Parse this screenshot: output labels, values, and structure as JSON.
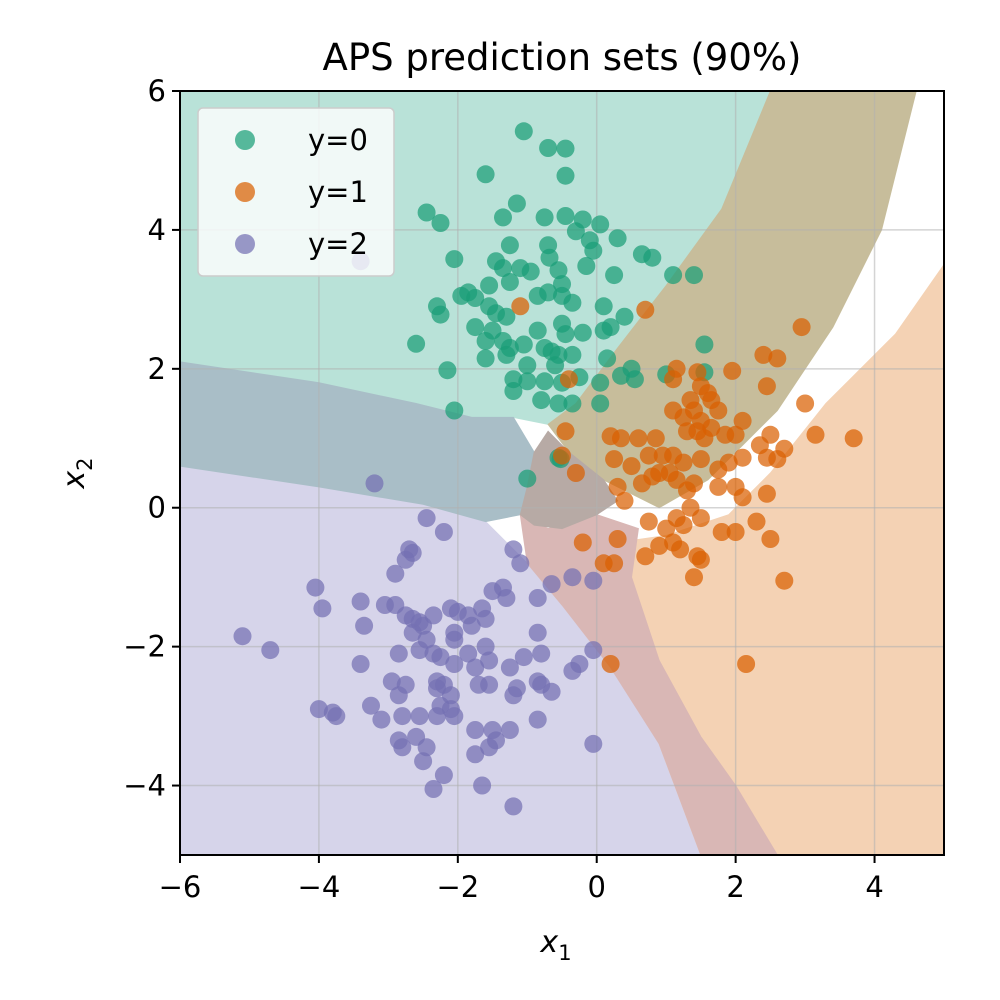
{
  "chart_data": {
    "type": "scatter",
    "title": "APS prediction sets (90%)",
    "xlabel": "x",
    "xlabel_sub": "1",
    "ylabel": "x",
    "ylabel_sub": "2",
    "xlim": [
      -6,
      5
    ],
    "ylim": [
      -5,
      6
    ],
    "xticks": [
      -6,
      -4,
      -2,
      0,
      2,
      4
    ],
    "yticks": [
      -4,
      -2,
      0,
      2,
      4,
      6
    ],
    "xtick_labels": [
      "−6",
      "−4",
      "−2",
      "0",
      "2",
      "4"
    ],
    "ytick_labels": [
      "−4",
      "−2",
      "0",
      "2",
      "4",
      "6"
    ],
    "grid": true,
    "legend_position": "top-left",
    "region_colors": {
      "class0": "#b9e2d8",
      "class1": "#f4d2b4",
      "class2": "#d6d4ea",
      "set01": "#c7bd9b",
      "set02": "#a9bec7",
      "set12": "#d9b7b5",
      "set012": "#b7aaa5"
    },
    "series": [
      {
        "name": "y=0",
        "color": "#1b9e77",
        "points": [
          [
            -1.05,
            5.42
          ],
          [
            -0.7,
            5.18
          ],
          [
            -0.45,
            5.17
          ],
          [
            -0.45,
            4.78
          ],
          [
            -1.6,
            4.8
          ],
          [
            -2.45,
            4.25
          ],
          [
            -2.25,
            4.1
          ],
          [
            -1.15,
            4.38
          ],
          [
            -1.35,
            4.18
          ],
          [
            -0.75,
            4.18
          ],
          [
            -0.45,
            4.2
          ],
          [
            -0.2,
            4.15
          ],
          [
            0.05,
            4.08
          ],
          [
            0.3,
            3.88
          ],
          [
            -0.1,
            3.85
          ],
          [
            -0.3,
            3.98
          ],
          [
            -1.25,
            3.78
          ],
          [
            -0.7,
            3.78
          ],
          [
            -0.68,
            3.6
          ],
          [
            -0.95,
            3.4
          ],
          [
            -1.1,
            3.45
          ],
          [
            -1.45,
            3.55
          ],
          [
            -1.35,
            3.45
          ],
          [
            -1.55,
            3.2
          ],
          [
            -1.25,
            3.25
          ],
          [
            -0.5,
            3.22
          ],
          [
            -0.55,
            3.42
          ],
          [
            -0.15,
            3.48
          ],
          [
            -0.05,
            3.7
          ],
          [
            0.25,
            3.35
          ],
          [
            0.65,
            3.65
          ],
          [
            0.8,
            3.6
          ],
          [
            1.1,
            3.35
          ],
          [
            1.4,
            3.35
          ],
          [
            -2.05,
            3.58
          ],
          [
            -1.85,
            3.1
          ],
          [
            -1.75,
            3.02
          ],
          [
            -1.95,
            3.05
          ],
          [
            -2.3,
            2.9
          ],
          [
            -2.25,
            2.78
          ],
          [
            -1.55,
            2.9
          ],
          [
            -1.45,
            2.8
          ],
          [
            -1.3,
            2.75
          ],
          [
            -0.85,
            3.05
          ],
          [
            -0.7,
            3.1
          ],
          [
            -0.5,
            3.05
          ],
          [
            -0.35,
            2.95
          ],
          [
            0.1,
            2.9
          ],
          [
            -2.6,
            2.36
          ],
          [
            -1.75,
            2.6
          ],
          [
            -1.5,
            2.55
          ],
          [
            -1.6,
            2.4
          ],
          [
            -1.35,
            2.4
          ],
          [
            -1.25,
            2.3
          ],
          [
            -1.05,
            2.35
          ],
          [
            -0.85,
            2.55
          ],
          [
            -0.5,
            2.65
          ],
          [
            -0.45,
            2.5
          ],
          [
            -0.2,
            2.52
          ],
          [
            0.1,
            2.55
          ],
          [
            0.2,
            2.6
          ],
          [
            0.4,
            2.75
          ],
          [
            -0.75,
            2.3
          ],
          [
            -0.65,
            2.25
          ],
          [
            -0.55,
            2.2
          ],
          [
            -0.35,
            2.2
          ],
          [
            -0.6,
            2.05
          ],
          [
            -1.6,
            2.15
          ],
          [
            -1.3,
            2.2
          ],
          [
            -1.0,
            2.05
          ],
          [
            -1.2,
            1.85
          ],
          [
            -1.0,
            1.82
          ],
          [
            -0.75,
            1.82
          ],
          [
            -0.25,
            1.88
          ],
          [
            0.05,
            1.8
          ],
          [
            0.15,
            2.15
          ],
          [
            0.5,
            2.0
          ],
          [
            0.55,
            1.85
          ],
          [
            0.35,
            1.9
          ],
          [
            1.0,
            1.92
          ],
          [
            1.55,
            1.95
          ],
          [
            1.55,
            2.35
          ],
          [
            -2.15,
            1.98
          ],
          [
            -2.05,
            1.4
          ],
          [
            -1.2,
            1.68
          ],
          [
            -0.8,
            1.55
          ],
          [
            -0.55,
            1.5
          ],
          [
            -0.5,
            1.8
          ],
          [
            -0.35,
            1.5
          ],
          [
            0.05,
            1.5
          ],
          [
            -1.0,
            0.42
          ],
          [
            -0.55,
            0.72
          ],
          [
            -0.52,
            0.7
          ]
        ]
      },
      {
        "name": "y=1",
        "color": "#d95f02",
        "points": [
          [
            -1.1,
            2.9
          ],
          [
            0.7,
            2.85
          ],
          [
            2.95,
            2.6
          ],
          [
            2.4,
            2.2
          ],
          [
            2.6,
            2.15
          ],
          [
            1.15,
            2.0
          ],
          [
            1.45,
            1.95
          ],
          [
            1.95,
            1.97
          ],
          [
            1.5,
            1.75
          ],
          [
            1.6,
            1.65
          ],
          [
            2.45,
            1.75
          ],
          [
            1.1,
            1.85
          ],
          [
            1.35,
            1.55
          ],
          [
            1.65,
            1.55
          ],
          [
            1.75,
            1.4
          ],
          [
            3.0,
            1.5
          ],
          [
            1.1,
            1.4
          ],
          [
            1.4,
            1.4
          ],
          [
            1.25,
            1.3
          ],
          [
            1.5,
            1.25
          ],
          [
            2.1,
            1.25
          ],
          [
            1.3,
            1.1
          ],
          [
            1.45,
            1.1
          ],
          [
            1.65,
            1.15
          ],
          [
            1.85,
            1.05
          ],
          [
            2.0,
            1.05
          ],
          [
            1.55,
            1.0
          ],
          [
            2.35,
            0.9
          ],
          [
            2.5,
            1.05
          ],
          [
            2.7,
            0.85
          ],
          [
            2.6,
            0.7
          ],
          [
            3.15,
            1.05
          ],
          [
            3.7,
            1.0
          ],
          [
            -0.4,
            1.85
          ],
          [
            -0.45,
            1.1
          ],
          [
            0.2,
            1.03
          ],
          [
            0.35,
            1.0
          ],
          [
            0.6,
            1.0
          ],
          [
            0.85,
            1.0
          ],
          [
            0.25,
            0.7
          ],
          [
            0.5,
            0.6
          ],
          [
            0.75,
            0.75
          ],
          [
            0.95,
            0.75
          ],
          [
            1.1,
            0.75
          ],
          [
            1.25,
            0.65
          ],
          [
            1.5,
            0.7
          ],
          [
            1.75,
            0.55
          ],
          [
            1.9,
            0.65
          ],
          [
            2.1,
            0.72
          ],
          [
            2.45,
            0.72
          ],
          [
            0.65,
            0.35
          ],
          [
            0.8,
            0.45
          ],
          [
            0.9,
            0.5
          ],
          [
            1.05,
            0.5
          ],
          [
            1.15,
            0.4
          ],
          [
            1.4,
            0.35
          ],
          [
            1.75,
            0.3
          ],
          [
            2.0,
            0.3
          ],
          [
            2.1,
            0.15
          ],
          [
            2.45,
            0.2
          ],
          [
            -0.5,
            0.75
          ],
          [
            -0.3,
            0.5
          ],
          [
            0.3,
            0.3
          ],
          [
            0.4,
            0.1
          ],
          [
            1.3,
            0.25
          ],
          [
            1.35,
            0.0
          ],
          [
            0.75,
            -0.2
          ],
          [
            1.15,
            -0.15
          ],
          [
            1.25,
            -0.25
          ],
          [
            1.5,
            -0.15
          ],
          [
            1.8,
            -0.35
          ],
          [
            2.0,
            -0.35
          ],
          [
            2.3,
            -0.2
          ],
          [
            2.5,
            -0.45
          ],
          [
            1.0,
            -0.3
          ],
          [
            1.1,
            -0.5
          ],
          [
            0.9,
            -0.55
          ],
          [
            1.2,
            -0.6
          ],
          [
            0.7,
            -0.7
          ],
          [
            1.45,
            -0.7
          ],
          [
            1.5,
            -0.75
          ],
          [
            -0.2,
            -0.5
          ],
          [
            0.3,
            -0.45
          ],
          [
            1.4,
            -1.0
          ],
          [
            2.7,
            -1.05
          ],
          [
            0.1,
            -0.8
          ],
          [
            0.25,
            -0.8
          ],
          [
            0.2,
            -2.25
          ],
          [
            2.15,
            -2.25
          ]
        ]
      },
      {
        "name": "y=2",
        "color": "#7570b3",
        "points": [
          [
            -3.4,
            3.55
          ],
          [
            -3.2,
            0.35
          ],
          [
            -2.45,
            -0.15
          ],
          [
            -2.2,
            -0.35
          ],
          [
            -2.7,
            -0.6
          ],
          [
            -2.65,
            -0.65
          ],
          [
            -2.75,
            -0.75
          ],
          [
            -2.9,
            -0.95
          ],
          [
            -1.2,
            -0.6
          ],
          [
            -1.1,
            -0.8
          ],
          [
            -0.65,
            -1.1
          ],
          [
            -0.35,
            -1.0
          ],
          [
            -0.05,
            -1.05
          ],
          [
            -4.05,
            -1.15
          ],
          [
            -3.95,
            -1.45
          ],
          [
            -3.4,
            -1.35
          ],
          [
            -3.05,
            -1.4
          ],
          [
            -2.9,
            -1.4
          ],
          [
            -2.75,
            -1.55
          ],
          [
            -2.65,
            -1.6
          ],
          [
            -2.55,
            -1.65
          ],
          [
            -2.5,
            -1.7
          ],
          [
            -2.65,
            -1.8
          ],
          [
            -2.35,
            -1.55
          ],
          [
            -2.1,
            -1.45
          ],
          [
            -2.0,
            -1.5
          ],
          [
            -1.85,
            -1.55
          ],
          [
            -1.65,
            -1.45
          ],
          [
            -1.5,
            -1.2
          ],
          [
            -1.35,
            -1.15
          ],
          [
            -1.3,
            -1.3
          ],
          [
            -0.85,
            -1.3
          ],
          [
            -1.6,
            -1.6
          ],
          [
            -1.8,
            -1.7
          ],
          [
            -3.35,
            -1.7
          ],
          [
            -2.45,
            -1.9
          ],
          [
            -2.05,
            -1.8
          ],
          [
            -2.05,
            -1.9
          ],
          [
            -1.6,
            -2.0
          ],
          [
            -0.85,
            -1.8
          ],
          [
            -2.85,
            -2.1
          ],
          [
            -2.55,
            -2.05
          ],
          [
            -2.35,
            -2.1
          ],
          [
            -2.25,
            -2.15
          ],
          [
            -2.05,
            -2.25
          ],
          [
            -1.85,
            -2.1
          ],
          [
            -1.75,
            -2.3
          ],
          [
            -1.55,
            -2.2
          ],
          [
            -1.25,
            -2.3
          ],
          [
            -1.05,
            -2.15
          ],
          [
            -0.8,
            -2.1
          ],
          [
            -0.25,
            -2.25
          ],
          [
            -0.05,
            -2.05
          ],
          [
            -5.1,
            -1.85
          ],
          [
            -4.7,
            -2.05
          ],
          [
            -3.4,
            -2.25
          ],
          [
            -2.95,
            -2.5
          ],
          [
            -2.3,
            -2.5
          ],
          [
            -2.2,
            -2.55
          ],
          [
            -2.3,
            -2.6
          ],
          [
            -2.1,
            -2.7
          ],
          [
            -1.7,
            -2.55
          ],
          [
            -1.55,
            -2.55
          ],
          [
            -1.15,
            -2.6
          ],
          [
            -1.2,
            -2.7
          ],
          [
            -0.85,
            -2.5
          ],
          [
            -0.8,
            -2.55
          ],
          [
            -0.65,
            -2.65
          ],
          [
            -0.35,
            -2.35
          ],
          [
            -2.85,
            -2.7
          ],
          [
            -2.75,
            -2.55
          ],
          [
            -2.25,
            -2.85
          ],
          [
            -2.1,
            -2.9
          ],
          [
            -2.05,
            -3.0
          ],
          [
            -2.3,
            -3.0
          ],
          [
            -3.25,
            -2.85
          ],
          [
            -3.1,
            -3.05
          ],
          [
            -2.8,
            -3.0
          ],
          [
            -2.55,
            -3.0
          ],
          [
            -4.0,
            -2.9
          ],
          [
            -3.8,
            -2.95
          ],
          [
            -3.75,
            -3.0
          ],
          [
            -2.6,
            -3.3
          ],
          [
            -2.85,
            -3.35
          ],
          [
            -2.8,
            -3.45
          ],
          [
            -2.45,
            -3.45
          ],
          [
            -1.75,
            -3.2
          ],
          [
            -1.5,
            -3.2
          ],
          [
            -1.45,
            -3.35
          ],
          [
            -1.55,
            -3.45
          ],
          [
            -1.25,
            -3.2
          ],
          [
            -0.85,
            -3.05
          ],
          [
            -1.75,
            -3.55
          ],
          [
            -2.5,
            -3.65
          ],
          [
            -2.2,
            -3.85
          ],
          [
            -2.35,
            -4.05
          ],
          [
            -1.65,
            -4.0
          ],
          [
            -1.2,
            -4.3
          ],
          [
            -0.05,
            -3.4
          ]
        ]
      }
    ]
  }
}
